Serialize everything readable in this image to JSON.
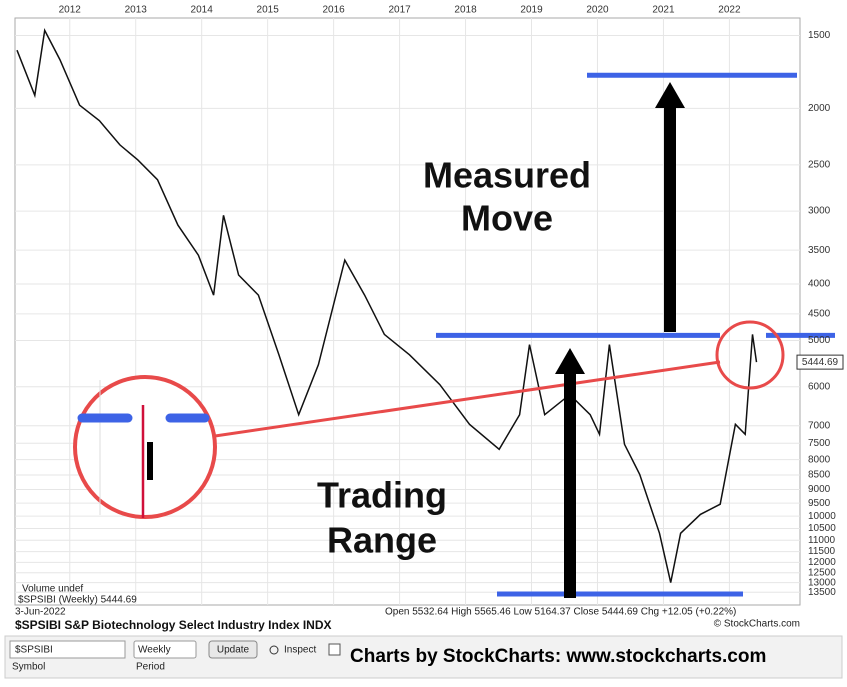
{
  "chart_data": {
    "type": "line",
    "title": "$SPSIBI S&P Biotechnology Select Industry Index INDX",
    "date": "3-Jun-2022",
    "legend_text": "$SPSIBI (Weekly) 5444.69",
    "volume_text": "Volume undef",
    "ohlc_text": "Open 5532.64  High 5565.46  Low 5164.37  Close 5444.69  Chg +12.05 (+0.22%)",
    "copyright": "© StockCharts.com",
    "annotations": [
      "Measured",
      "Move",
      "Trading",
      "Range"
    ],
    "log_scale": true,
    "inverted": true,
    "xlim": [
      2011.17,
      2023.07
    ],
    "xticks": [
      2012,
      2013,
      2014,
      2015,
      2016,
      2017,
      2018,
      2019,
      2020,
      2021,
      2022
    ],
    "ylim": [
      1400,
      14200
    ],
    "yticks": [
      1500,
      2000,
      2500,
      3000,
      3500,
      4000,
      4500,
      5000,
      6000,
      7000,
      7500,
      8000,
      8500,
      9000,
      9500,
      10000,
      10500,
      11000,
      11500,
      12000,
      12500,
      13000,
      13500
    ],
    "grid": true,
    "levels": [
      1755,
      4900,
      13600
    ],
    "level_color": "#3d63e6",
    "series": [
      {
        "name": "$SPSIBI",
        "color": "#111111",
        "x": [
          2011.2,
          2011.47,
          2011.62,
          2011.85,
          2012.15,
          2012.45,
          2012.76,
          2013.03,
          2013.33,
          2013.64,
          2013.95,
          2014.18,
          2014.33,
          2014.56,
          2014.86,
          2015.17,
          2015.47,
          2015.77,
          2016.17,
          2016.47,
          2016.77,
          2017.15,
          2017.61,
          2018.06,
          2018.51,
          2018.82,
          2018.97,
          2019.2,
          2019.58,
          2019.89,
          2020.03,
          2020.18,
          2020.41,
          2020.64,
          2020.94,
          2021.11,
          2021.26,
          2021.56,
          2021.86,
          2022.09,
          2022.24,
          2022.35,
          2022.41
        ],
        "values": [
          1590,
          1900,
          1470,
          1650,
          1975,
          2100,
          2310,
          2450,
          2650,
          3170,
          3570,
          4180,
          3050,
          3860,
          4180,
          5290,
          6700,
          5500,
          3640,
          4180,
          4880,
          5290,
          5950,
          6960,
          7680,
          6700,
          5080,
          6700,
          6190,
          6700,
          7240,
          5080,
          7530,
          8480,
          10700,
          13000,
          10700,
          9930,
          9540,
          6960,
          7240,
          4880,
          5444.69
        ]
      }
    ]
  },
  "toolbar": {
    "symbol": "$SPSIBI",
    "symbol_label": "Symbol",
    "period": "Weekly",
    "period_label": "Period",
    "update": "Update",
    "inspect": "Inspect",
    "credit": "Charts by StockCharts:  www.stockcharts.com"
  }
}
